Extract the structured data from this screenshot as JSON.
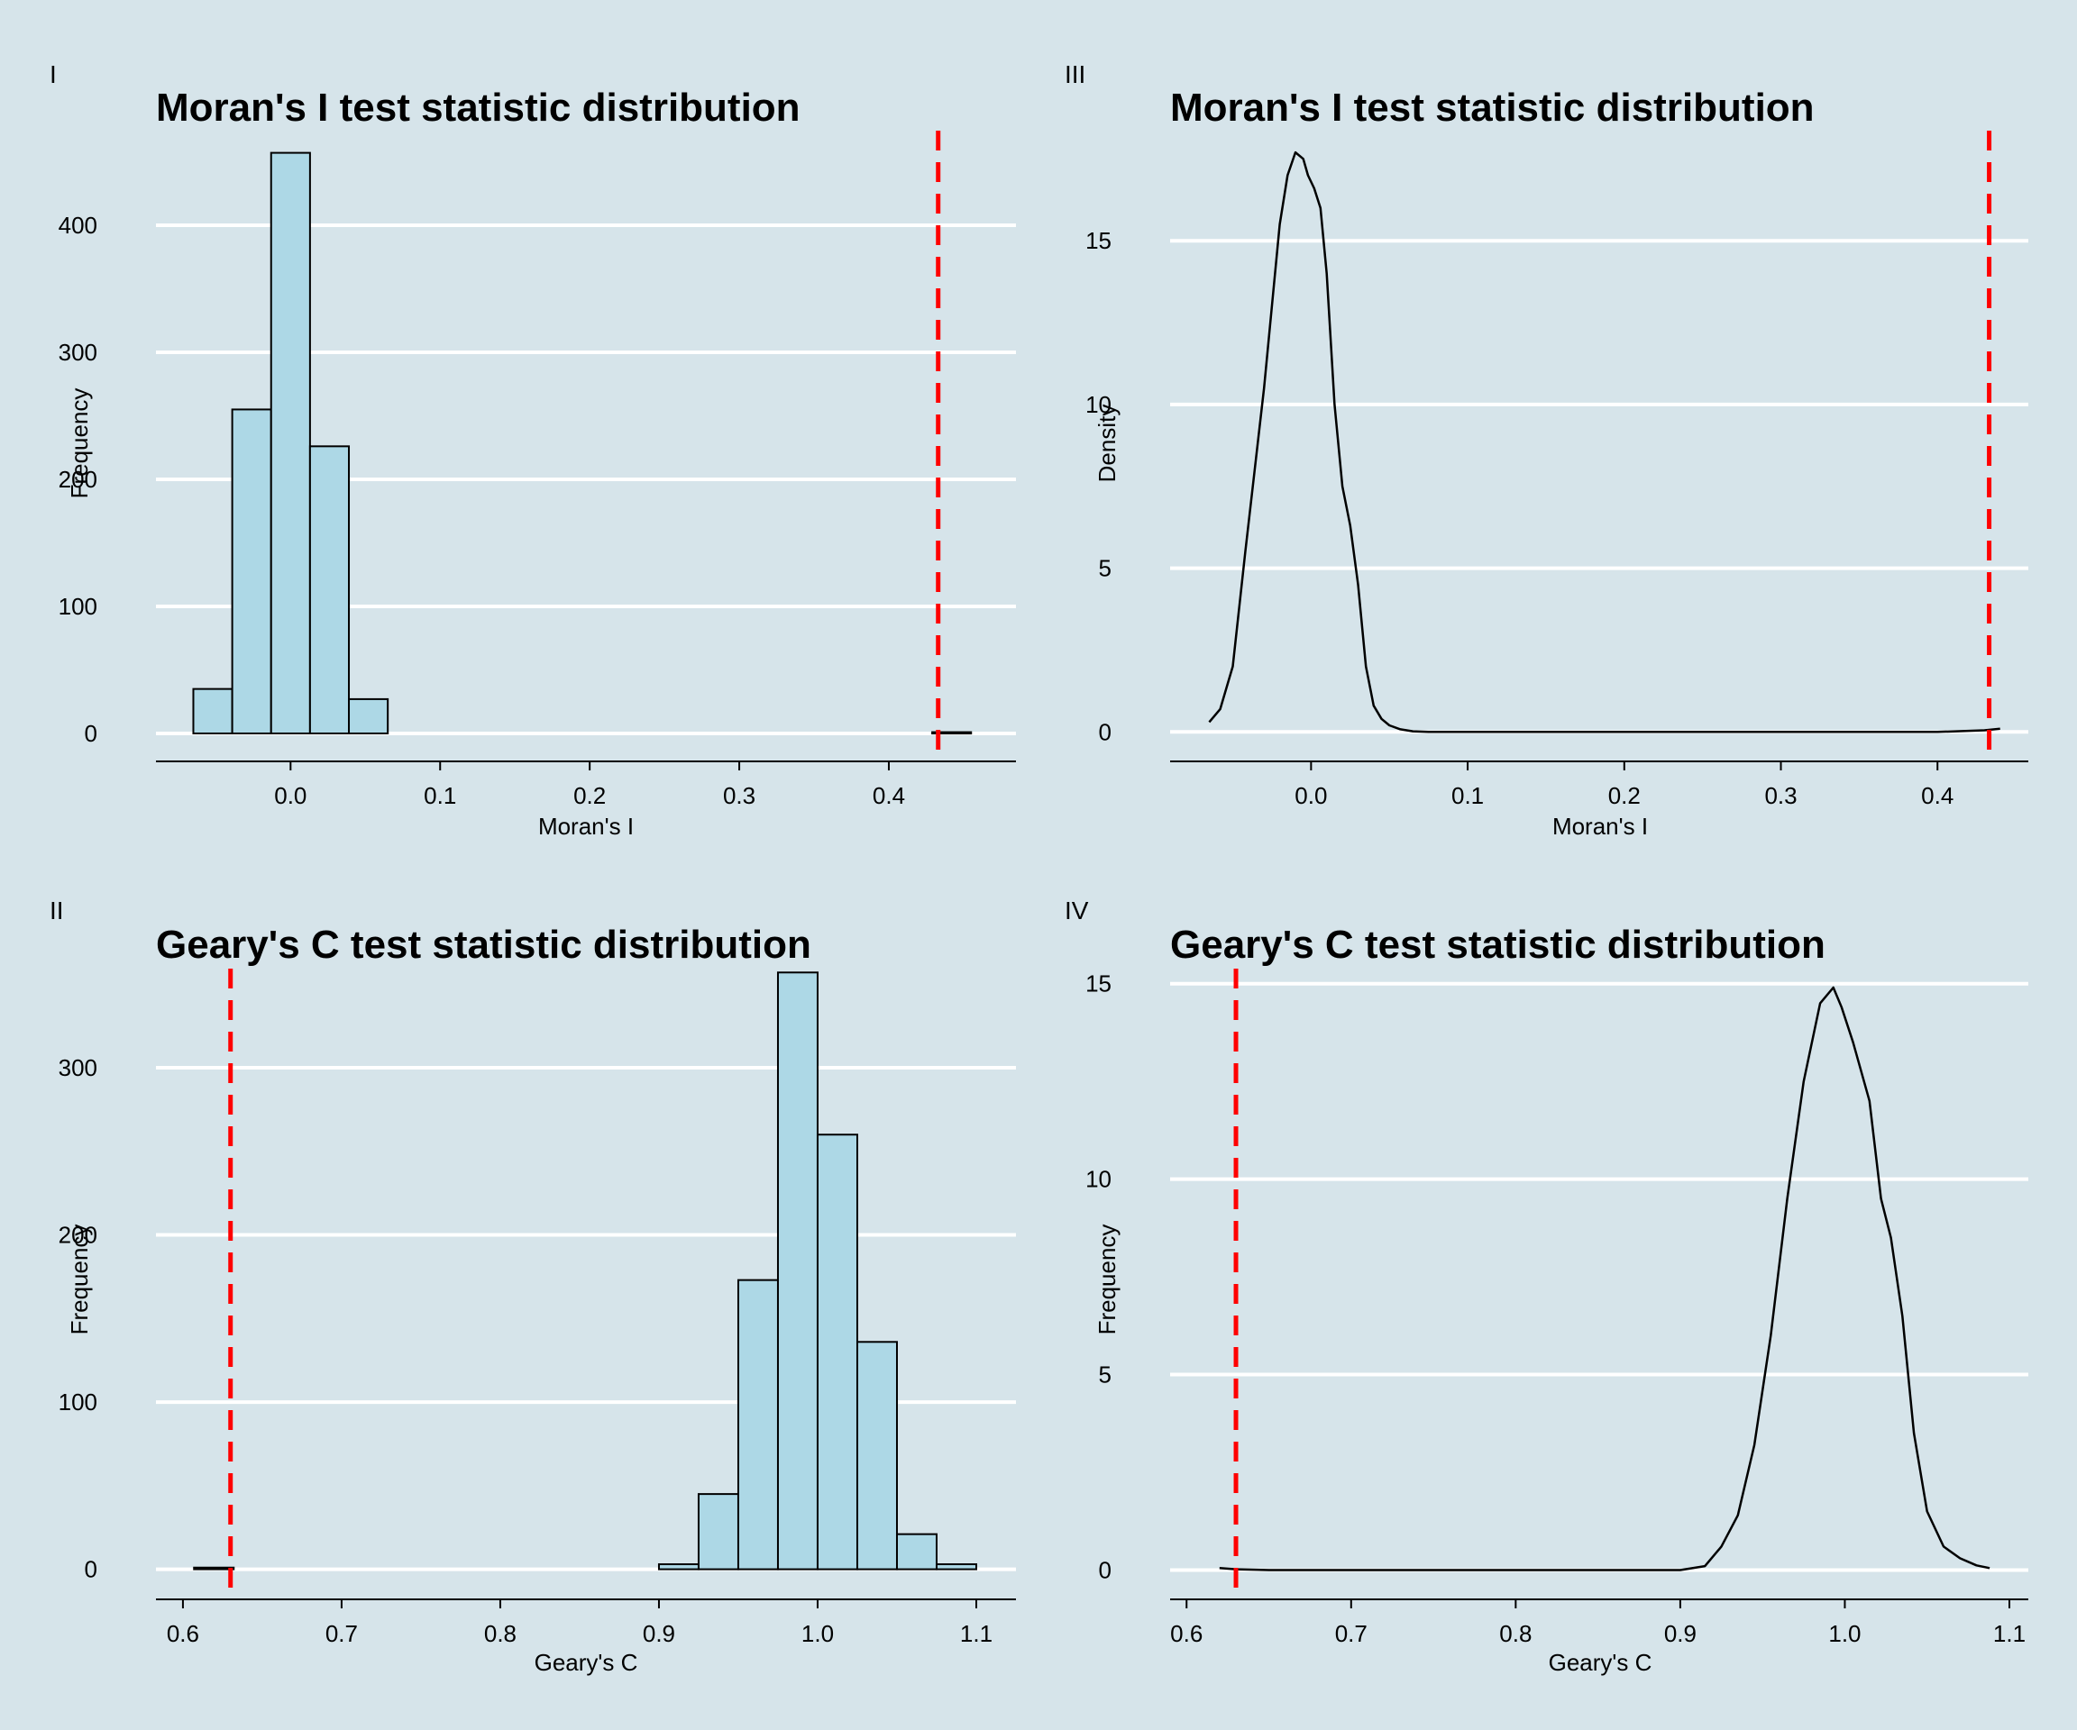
{
  "colors": {
    "background": "#d6e4ea",
    "gridline": "#ffffff",
    "bar_fill": "#add8e6",
    "bar_stroke": "#000000",
    "observed_line": "#ff0000",
    "density_line": "#000000"
  },
  "chart_data": [
    {
      "panel_label": "I",
      "type": "bar",
      "subtype": "histogram",
      "title": "Moran's I test statistic distribution",
      "xlabel": "Moran's I",
      "ylabel": "Frequency",
      "xlim": [
        -0.09,
        0.485
      ],
      "ylim": [
        -22,
        478
      ],
      "xticks": [
        0.0,
        0.1,
        0.2,
        0.3,
        0.4
      ],
      "xtick_labels": [
        "0.0",
        "0.1",
        "0.2",
        "0.3",
        "0.4"
      ],
      "yticks": [
        0,
        100,
        200,
        300,
        400
      ],
      "ytick_labels": [
        "0",
        "100",
        "200",
        "300",
        "400"
      ],
      "grid": "horizontal",
      "bins": [
        {
          "x0": -0.065,
          "x1": -0.039,
          "count": 35
        },
        {
          "x0": -0.039,
          "x1": -0.013,
          "count": 255
        },
        {
          "x0": -0.013,
          "x1": 0.013,
          "count": 457
        },
        {
          "x0": 0.013,
          "x1": 0.039,
          "count": 226
        },
        {
          "x0": 0.039,
          "x1": 0.065,
          "count": 27
        },
        {
          "x0": 0.429,
          "x1": 0.455,
          "count": 1
        }
      ],
      "observed_value": 0.433
    },
    {
      "panel_label": "II",
      "type": "bar",
      "subtype": "histogram",
      "title": "Geary's C test statistic distribution",
      "xlabel": "Geary's C",
      "ylabel": "Frequency",
      "xlim": [
        0.583,
        1.125
      ],
      "ylim": [
        -18,
        362
      ],
      "xticks": [
        0.6,
        0.7,
        0.8,
        0.9,
        1.0,
        1.1
      ],
      "xtick_labels": [
        "0.6",
        "0.7",
        "0.8",
        "0.9",
        "1.0",
        "1.1"
      ],
      "yticks": [
        0,
        100,
        200,
        300
      ],
      "ytick_labels": [
        "0",
        "100",
        "200",
        "300"
      ],
      "grid": "horizontal",
      "bins": [
        {
          "x0": 0.607,
          "x1": 0.632,
          "count": 1
        },
        {
          "x0": 0.9,
          "x1": 0.925,
          "count": 3
        },
        {
          "x0": 0.925,
          "x1": 0.95,
          "count": 45
        },
        {
          "x0": 0.95,
          "x1": 0.975,
          "count": 173
        },
        {
          "x0": 0.975,
          "x1": 1.0,
          "count": 357
        },
        {
          "x0": 1.0,
          "x1": 1.025,
          "count": 260
        },
        {
          "x0": 1.025,
          "x1": 1.05,
          "count": 136
        },
        {
          "x0": 1.05,
          "x1": 1.075,
          "count": 21
        },
        {
          "x0": 1.075,
          "x1": 1.1,
          "count": 3
        }
      ],
      "observed_value": 0.63
    },
    {
      "panel_label": "III",
      "type": "line",
      "subtype": "density",
      "title": "Moran's I test statistic distribution",
      "xlabel": "Moran's I",
      "ylabel": "Density",
      "xlim": [
        -0.09,
        0.458
      ],
      "ylim": [
        -0.9,
        18.5
      ],
      "xticks": [
        0.0,
        0.1,
        0.2,
        0.3,
        0.4
      ],
      "xtick_labels": [
        "0.0",
        "0.1",
        "0.2",
        "0.3",
        "0.4"
      ],
      "yticks": [
        0,
        5,
        10,
        15
      ],
      "ytick_labels": [
        "0",
        "5",
        "10",
        "15"
      ],
      "grid": "horizontal",
      "x": [
        -0.065,
        -0.058,
        -0.05,
        -0.042,
        -0.036,
        -0.03,
        -0.025,
        -0.02,
        -0.015,
        -0.01,
        -0.005,
        -0.002,
        0.002,
        0.006,
        0.01,
        0.015,
        0.02,
        0.025,
        0.03,
        0.035,
        0.04,
        0.045,
        0.05,
        0.057,
        0.065,
        0.075,
        0.1,
        0.2,
        0.3,
        0.4,
        0.43,
        0.44
      ],
      "y": [
        0.3,
        0.7,
        2.0,
        5.5,
        8.0,
        10.5,
        13.0,
        15.5,
        17.0,
        17.7,
        17.5,
        17.0,
        16.6,
        16.0,
        14.0,
        10.0,
        7.5,
        6.3,
        4.5,
        2.0,
        0.8,
        0.4,
        0.2,
        0.08,
        0.02,
        0.0,
        0.0,
        0.0,
        0.0,
        0.0,
        0.05,
        0.1
      ],
      "observed_value": 0.433
    },
    {
      "panel_label": "IV",
      "type": "line",
      "subtype": "density",
      "title": "Geary's C test statistic distribution",
      "xlabel": "Geary's C",
      "ylabel": "Frequency",
      "xlim": [
        0.59,
        1.1115
      ],
      "ylim": [
        -0.75,
        15.5
      ],
      "xticks": [
        0.6,
        0.7,
        0.8,
        0.9,
        1.0,
        1.1
      ],
      "xtick_labels": [
        "0.6",
        "0.7",
        "0.8",
        "0.9",
        "1.0",
        "1.1"
      ],
      "yticks": [
        0,
        5,
        10,
        15
      ],
      "ytick_labels": [
        "0",
        "5",
        "10",
        "15"
      ],
      "grid": "horizontal",
      "x": [
        0.62,
        0.63,
        0.65,
        0.8,
        0.9,
        0.915,
        0.925,
        0.935,
        0.945,
        0.955,
        0.965,
        0.975,
        0.985,
        0.993,
        0.998,
        1.005,
        1.015,
        1.022,
        1.028,
        1.035,
        1.042,
        1.05,
        1.06,
        1.07,
        1.08,
        1.088
      ],
      "y": [
        0.05,
        0.02,
        0.0,
        0.0,
        0.0,
        0.1,
        0.6,
        1.4,
        3.2,
        6.0,
        9.5,
        12.5,
        14.5,
        14.9,
        14.4,
        13.5,
        12.0,
        9.5,
        8.5,
        6.5,
        3.5,
        1.5,
        0.6,
        0.3,
        0.12,
        0.05
      ],
      "observed_value": 0.63
    }
  ]
}
